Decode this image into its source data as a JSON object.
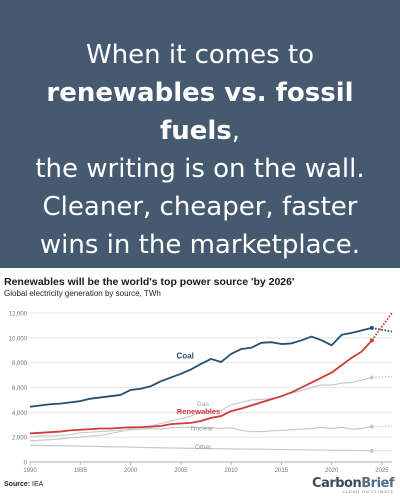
{
  "banner": {
    "line1": "When it comes to",
    "line2_bold": "renewables vs. fossil fuels",
    "line2_rest": ",",
    "line3": "the writing is on the wall.",
    "line4": "Cleaner, cheaper, faster",
    "line5": "wins in the marketplace."
  },
  "footer": {
    "source_label": "Source:",
    "source_value": "IEA",
    "brand_a": "Carbon",
    "brand_b": "Brief",
    "brand_tag": "CLEAR ON CLIMATE"
  },
  "colors": {
    "banner_bg": "#455a6f",
    "coal": "#24506f",
    "renewables": "#d13a35",
    "gas": "#c9c9c9",
    "nuclear": "#c9c9c9",
    "other": "#c9c9c9"
  },
  "chart_data": {
    "type": "line",
    "title": "Renewables will be the world's top power source 'by 2026'",
    "subtitle": "Global electricity generation by source, TWh",
    "ylim": [
      0,
      12000
    ],
    "yticks": [
      "0",
      "2,000",
      "4,000",
      "6,000",
      "8,000",
      "10,000",
      "12,000"
    ],
    "xlim": [
      1990,
      2026
    ],
    "xticks": [
      "1990",
      "1995",
      "2000",
      "2005",
      "2010",
      "2015",
      "2020",
      "2025"
    ],
    "grid": true,
    "x": [
      1990,
      1991,
      1992,
      1993,
      1994,
      1995,
      1996,
      1997,
      1998,
      1999,
      2000,
      2001,
      2002,
      2003,
      2004,
      2005,
      2006,
      2007,
      2008,
      2009,
      2010,
      2011,
      2012,
      2013,
      2014,
      2015,
      2016,
      2017,
      2018,
      2019,
      2020,
      2021,
      2022,
      2023,
      2024
    ],
    "series": [
      {
        "name": "Coal",
        "projection": [
          10800,
          10500
        ],
        "values": [
          4450,
          4550,
          4650,
          4700,
          4800,
          4900,
          5100,
          5200,
          5300,
          5400,
          5800,
          5900,
          6100,
          6500,
          6800,
          7100,
          7450,
          7900,
          8300,
          8050,
          8700,
          9100,
          9200,
          9600,
          9650,
          9500,
          9550,
          9800,
          10100,
          9800,
          9400,
          10250,
          10400,
          10600,
          10800
        ]
      },
      {
        "name": "Gas",
        "projection": [
          6800,
          6900
        ],
        "values": [
          1700,
          1750,
          1800,
          1850,
          1950,
          2000,
          2100,
          2150,
          2300,
          2450,
          2700,
          2800,
          2900,
          3100,
          3300,
          3500,
          3700,
          4000,
          4100,
          4150,
          4600,
          4800,
          5000,
          5050,
          5100,
          5300,
          5550,
          5750,
          6000,
          6200,
          6200,
          6350,
          6400,
          6600,
          6800
        ]
      },
      {
        "name": "Renewables",
        "projection": [
          9800,
          12000
        ],
        "values": [
          2300,
          2350,
          2400,
          2450,
          2550,
          2600,
          2650,
          2700,
          2700,
          2750,
          2800,
          2800,
          2850,
          2900,
          3050,
          3100,
          3150,
          3300,
          3550,
          3700,
          4100,
          4300,
          4550,
          4800,
          5050,
          5300,
          5600,
          6000,
          6400,
          6800,
          7200,
          7800,
          8400,
          8900,
          9800
        ]
      },
      {
        "name": "Nuclear",
        "projection": [
          2850,
          2900
        ],
        "values": [
          2000,
          2100,
          2100,
          2150,
          2200,
          2350,
          2400,
          2450,
          2500,
          2550,
          2600,
          2650,
          2700,
          2650,
          2750,
          2800,
          2800,
          2750,
          2750,
          2700,
          2750,
          2550,
          2450,
          2450,
          2500,
          2550,
          2600,
          2650,
          2700,
          2800,
          2700,
          2800,
          2650,
          2700,
          2850
        ]
      },
      {
        "name": "Other",
        "projection": [
          900,
          900
        ],
        "values": [
          1350,
          1340,
          1320,
          1300,
          1300,
          1280,
          1270,
          1250,
          1230,
          1220,
          1200,
          1180,
          1160,
          1150,
          1130,
          1120,
          1100,
          1090,
          1080,
          1070,
          1050,
          1050,
          1040,
          1030,
          1020,
          1000,
          990,
          980,
          970,
          960,
          950,
          940,
          930,
          920,
          900
        ]
      }
    ]
  }
}
